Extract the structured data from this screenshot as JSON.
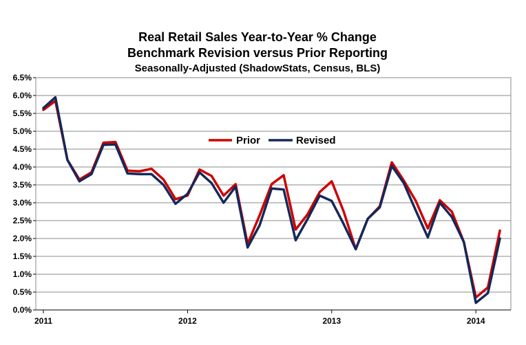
{
  "chart_data": {
    "type": "line",
    "title": "Real Retail Sales Year-to-Year % Change",
    "subtitle": "Benchmark Revision versus Prior Reporting",
    "subtitle2": "Seasonally-Adjusted (ShadowStats, Census, BLS)",
    "xlabel": "",
    "ylabel": "",
    "ylim": [
      0,
      6.5
    ],
    "y_ticks": [
      "0.0%",
      "0.5%",
      "1.0%",
      "1.5%",
      "2.0%",
      "2.5%",
      "3.0%",
      "3.5%",
      "4.0%",
      "4.5%",
      "5.0%",
      "5.5%",
      "6.0%",
      "6.5%"
    ],
    "x_tick_labels": [
      "2011",
      "2012",
      "2013",
      "2014"
    ],
    "x_tick_positions": [
      0,
      12,
      24,
      36
    ],
    "x_range": [
      0,
      39.5
    ],
    "grid": true,
    "legend_position": "upper-middle",
    "series": [
      {
        "name": "Prior",
        "color": "#cc0000",
        "values": [
          5.6,
          5.85,
          4.2,
          3.65,
          3.85,
          4.68,
          4.7,
          3.9,
          3.88,
          3.95,
          3.65,
          3.1,
          3.2,
          3.93,
          3.75,
          3.2,
          3.52,
          1.85,
          2.65,
          3.52,
          3.77,
          2.25,
          2.68,
          3.3,
          3.6,
          2.75,
          1.7,
          2.55,
          2.9,
          4.13,
          3.62,
          3.05,
          2.28,
          3.07,
          2.75,
          1.9,
          0.35,
          0.63,
          2.22
        ]
      },
      {
        "name": "Revised",
        "color": "#14285a",
        "values": [
          5.65,
          5.95,
          4.2,
          3.6,
          3.8,
          4.62,
          4.63,
          3.82,
          3.8,
          3.8,
          3.5,
          2.97,
          3.25,
          3.85,
          3.55,
          3.0,
          3.45,
          1.75,
          2.37,
          3.4,
          3.37,
          1.95,
          2.55,
          3.2,
          3.05,
          2.4,
          1.7,
          2.55,
          2.87,
          4.03,
          3.55,
          2.78,
          2.03,
          3.0,
          2.6,
          1.9,
          0.2,
          0.47,
          2.0
        ]
      }
    ]
  }
}
